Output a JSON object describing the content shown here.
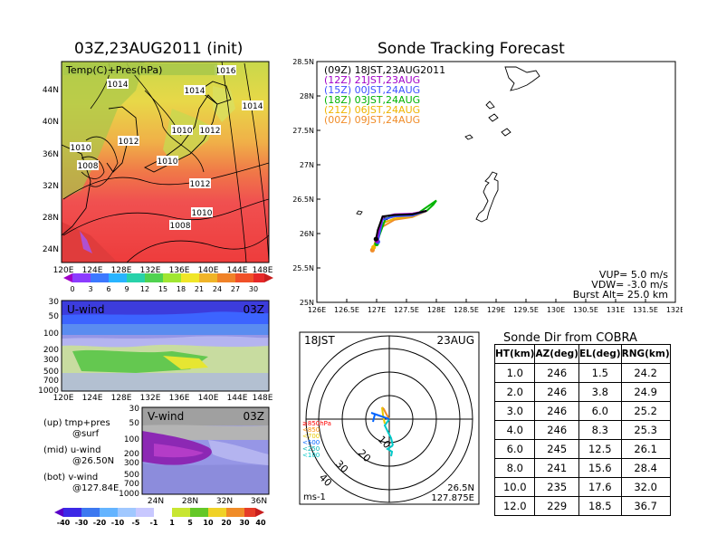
{
  "map_panel": {
    "title": "03Z,23AUG2011 (init)",
    "overlay_label": "Temp(C)+Pres(hPa)",
    "lat_ticks": [
      "44N",
      "40N",
      "36N",
      "32N",
      "28N",
      "24N"
    ],
    "lon_ticks": [
      "120E",
      "124E",
      "128E",
      "132E",
      "136E",
      "140E",
      "144E",
      "148E"
    ],
    "isobar_labels": [
      "1016",
      "1014",
      "1014",
      "1014",
      "1012",
      "1010",
      "1012",
      "1010",
      "1010",
      "1008",
      "1012",
      "1010",
      "1008"
    ],
    "colorbar_ticks": [
      "0",
      "3",
      "6",
      "9",
      "12",
      "15",
      "18",
      "21",
      "24",
      "27",
      "30"
    ]
  },
  "u_panel": {
    "label": "U-wind",
    "time": "03Z",
    "y_ticks": [
      "30",
      "50",
      "100",
      "200",
      "300",
      "500",
      "700",
      "1000"
    ],
    "x_ticks": [
      "120E",
      "124E",
      "128E",
      "132E",
      "136E",
      "140E",
      "144E",
      "148E"
    ]
  },
  "v_panel": {
    "label": "V-wind",
    "time": "03Z",
    "y_ticks": [
      "30",
      "50",
      "100",
      "200",
      "300",
      "500",
      "700",
      "1000"
    ],
    "x_ticks": [
      "24N",
      "28N",
      "32N",
      "36N"
    ]
  },
  "panel_notes": [
    {
      "line1": "(up) tmp+pres",
      "line2": "@surf"
    },
    {
      "line1": "(mid) u-wind",
      "line2": "@26.50N"
    },
    {
      "line1": "(bot) v-wind",
      "line2": "@127.84E"
    }
  ],
  "wind_colorbar_ticks": [
    "-40",
    "-30",
    "-20",
    "-10",
    "-5",
    "-1",
    "1",
    "5",
    "10",
    "20",
    "30",
    "40"
  ],
  "tracking": {
    "title": "Sonde Tracking Forecast",
    "legend": [
      {
        "label": "(09Z)  18JST,23AUG2011",
        "color": "#000000"
      },
      {
        "label": "(12Z)  21JST,23AUG",
        "color": "#a000c8"
      },
      {
        "label": "(15Z)  00JST,24AUG",
        "color": "#3c50ff"
      },
      {
        "label": "(18Z)  03JST,24AUG",
        "color": "#00b400"
      },
      {
        "label": "(21Z)  06JST,24AUG",
        "color": "#f0b400"
      },
      {
        "label": "(00Z)  09JST,24AUG",
        "color": "#f08c28"
      }
    ],
    "vup": "VUP=  5.0  m/s",
    "vdw": "VDW=  -3.0  m/s",
    "burst": "Burst Alt=  25.0  km"
  },
  "polar": {
    "time": "18JST",
    "date": "23AUG",
    "ring_labels": [
      "10",
      "20",
      "30",
      "40"
    ],
    "alt_legend": [
      "≥850hPa",
      "<850",
      "<700",
      "<500",
      "<250",
      "<100"
    ],
    "alt_colors": [
      "#ff0000",
      "#ff8c00",
      "#e6c800",
      "#0064ff",
      "#00b4b4",
      "#00c8c8"
    ],
    "unit": "ms-1",
    "loc_lat": "26.5N",
    "loc_lon": "127.875E"
  },
  "cobra": {
    "title": "Sonde Dir from COBRA",
    "headers": [
      "HT(km)",
      "AZ(deg)",
      "EL(deg)",
      "RNG(km)"
    ],
    "rows": [
      [
        "1.0",
        "246",
        "1.5",
        "24.2"
      ],
      [
        "2.0",
        "246",
        "3.8",
        "24.9"
      ],
      [
        "3.0",
        "246",
        "6.0",
        "25.2"
      ],
      [
        "4.0",
        "246",
        "8.3",
        "25.3"
      ],
      [
        "6.0",
        "245",
        "12.5",
        "26.1"
      ],
      [
        "8.0",
        "241",
        "15.6",
        "28.4"
      ],
      [
        "10.0",
        "235",
        "17.6",
        "32.0"
      ],
      [
        "12.0",
        "229",
        "18.5",
        "36.7"
      ]
    ]
  },
  "chart_data": [
    {
      "type": "line",
      "title": "Sonde Tracking Forecast",
      "xlabel": "",
      "ylabel": "",
      "xlim": [
        126,
        132
      ],
      "ylim": [
        25,
        28.5
      ],
      "x_ticks": [
        "126E",
        "126.5E",
        "127E",
        "127.5E",
        "128E",
        "128.5E",
        "129E",
        "129.5E",
        "130E",
        "130.5E",
        "131E",
        "131.5E",
        "132E"
      ],
      "y_ticks": [
        "25N",
        "25.5N",
        "26N",
        "26.5N",
        "27N",
        "27.5N",
        "28N",
        "28.5N"
      ],
      "series": [
        {
          "name": "(09Z)  18JST,23AUG2011",
          "color": "#000000",
          "x": [
            127.84,
            127.6,
            127.3,
            127.1,
            127.02,
            126.99
          ],
          "y": [
            26.33,
            26.28,
            26.27,
            26.25,
            26.05,
            25.92
          ]
        },
        {
          "name": "(12Z)  21JST,23AUG",
          "color": "#a000c8",
          "x": [
            127.84,
            127.6,
            127.3,
            127.1,
            127.03,
            127.0
          ],
          "y": [
            26.33,
            26.29,
            26.28,
            26.24,
            26.02,
            25.9
          ]
        },
        {
          "name": "(15Z)  00JST,24AUG",
          "color": "#3c50ff",
          "x": [
            127.84,
            127.6,
            127.3,
            127.1,
            127.05,
            127.02
          ],
          "y": [
            26.33,
            26.26,
            26.25,
            26.2,
            26.0,
            25.88
          ]
        },
        {
          "name": "(18Z)  03JST,24AUG",
          "color": "#00b400",
          "x": [
            127.84,
            127.95,
            128.0,
            127.7,
            127.4,
            127.15,
            127.05,
            127.0
          ],
          "y": [
            26.33,
            26.42,
            26.48,
            26.3,
            26.27,
            26.22,
            25.98,
            25.85
          ]
        },
        {
          "name": "(21Z)  06JST,24AUG",
          "color": "#f0b400",
          "x": [
            127.84,
            127.6,
            127.3,
            127.1,
            127.0,
            126.95
          ],
          "y": [
            26.33,
            26.25,
            26.22,
            26.15,
            25.95,
            25.8
          ]
        },
        {
          "name": "(00Z)  09JST,24AUG",
          "color": "#f08c28",
          "x": [
            127.84,
            127.6,
            127.3,
            127.1,
            127.0,
            126.93
          ],
          "y": [
            26.33,
            26.24,
            26.2,
            26.1,
            25.9,
            25.76
          ]
        }
      ]
    },
    {
      "type": "table",
      "title": "Sonde Dir from COBRA",
      "columns": [
        "HT(km)",
        "AZ(deg)",
        "EL(deg)",
        "RNG(km)"
      ],
      "rows": [
        [
          1.0,
          246,
          1.5,
          24.2
        ],
        [
          2.0,
          246,
          3.8,
          24.9
        ],
        [
          3.0,
          246,
          6.0,
          25.2
        ],
        [
          4.0,
          246,
          8.3,
          25.3
        ],
        [
          6.0,
          245,
          12.5,
          26.1
        ],
        [
          8.0,
          241,
          15.6,
          28.4
        ],
        [
          10.0,
          235,
          17.6,
          32.0
        ],
        [
          12.0,
          229,
          18.5,
          36.7
        ]
      ]
    }
  ]
}
